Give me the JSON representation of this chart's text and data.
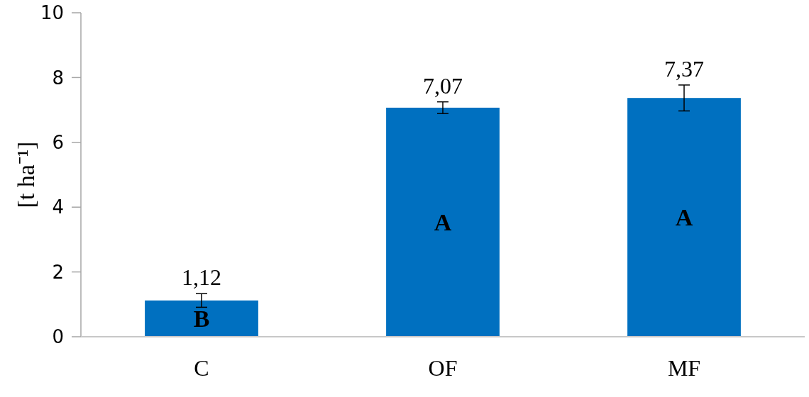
{
  "chart_data": {
    "type": "bar",
    "ylabel": "[t ha⁻¹]",
    "categories": [
      "C",
      "OF",
      "MF"
    ],
    "values": [
      1.12,
      7.07,
      7.37
    ],
    "errors": [
      0.21,
      0.18,
      0.4
    ],
    "value_labels": [
      "1,12",
      "7,07",
      "7,37"
    ],
    "color": "#0070c0",
    "ylim": [
      0,
      10
    ],
    "yticks": [
      0,
      2,
      4,
      6,
      8,
      10
    ],
    "annotations": [
      "B",
      "A",
      "A"
    ]
  }
}
